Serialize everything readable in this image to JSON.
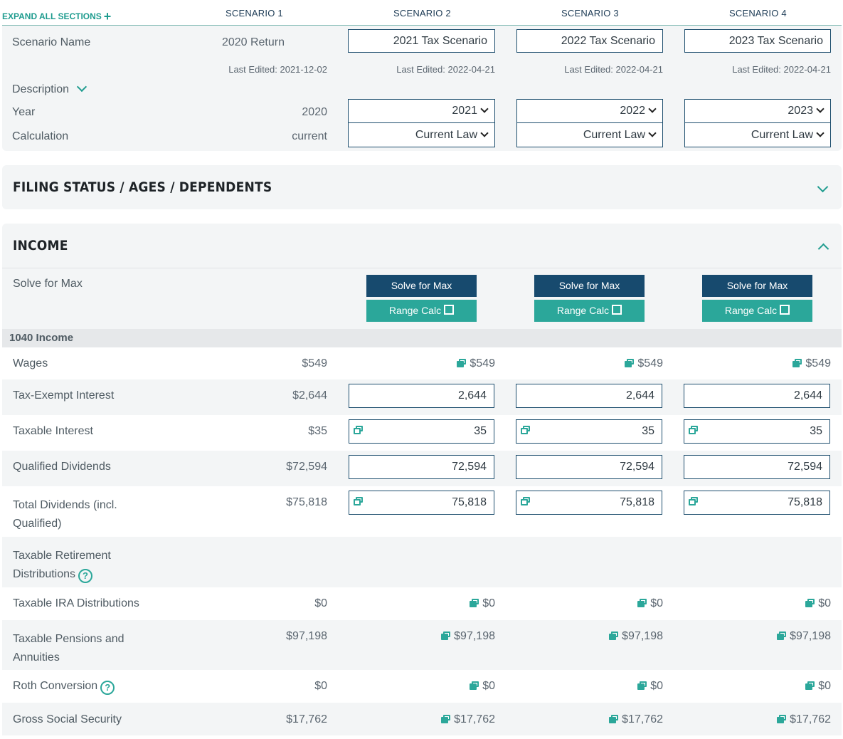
{
  "header": {
    "expand_all": "EXPAND ALL SECTIONS",
    "scenarios": [
      "SCENARIO 1",
      "SCENARIO 2",
      "SCENARIO 3",
      "SCENARIO 4"
    ]
  },
  "scenario_panel": {
    "name_label": "Scenario Name",
    "names": [
      "2020 Return",
      "2021 Tax Scenario",
      "2022 Tax Scenario",
      "2023 Tax Scenario"
    ],
    "edited": [
      "Last Edited: 2021-12-02",
      "Last Edited: 2022-04-21",
      "Last Edited: 2022-04-21",
      "Last Edited: 2022-04-21"
    ],
    "description_label": "Description",
    "year_label": "Year",
    "years": [
      "2020",
      "2021",
      "2022",
      "2023"
    ],
    "calc_label": "Calculation",
    "calcs": [
      "current",
      "Current Law",
      "Current Law",
      "Current Law"
    ]
  },
  "sections": {
    "filing": "FILING STATUS / AGES / DEPENDENTS",
    "income": "INCOME"
  },
  "income": {
    "solve_label": "Solve for Max",
    "solve_button": "Solve for Max",
    "range_button": "Range Calc",
    "subheader": "1040 Income",
    "rows": {
      "wages": {
        "label": "Wages",
        "s1": "$549",
        "s2": "$549",
        "s3": "$549",
        "s4": "$549"
      },
      "tax_exempt": {
        "label": "Tax-Exempt Interest",
        "s1": "$2,644",
        "s2": "2,644",
        "s3": "2,644",
        "s4": "2,644"
      },
      "taxable_interest": {
        "label": "Taxable Interest",
        "s1": "$35",
        "s2": "35",
        "s3": "35",
        "s4": "35"
      },
      "qualified_div": {
        "label": "Qualified Dividends",
        "s1": "$72,594",
        "s2": "72,594",
        "s3": "72,594",
        "s4": "72,594"
      },
      "total_div": {
        "label_1": "Total Dividends (incl.",
        "label_2": "Qualified)",
        "s1": "$75,818",
        "s2": "75,818",
        "s3": "75,818",
        "s4": "75,818"
      },
      "retirement": {
        "label_1": "Taxable Retirement",
        "label_2": "Distributions"
      },
      "ira": {
        "label": "Taxable IRA Distributions",
        "s1": "$0",
        "s2": "$0",
        "s3": "$0",
        "s4": "$0"
      },
      "pensions": {
        "label_1": "Taxable Pensions and",
        "label_2": "Annuities",
        "s1": "$97,198",
        "s2": "$97,198",
        "s3": "$97,198",
        "s4": "$97,198"
      },
      "roth": {
        "label": "Roth Conversion",
        "s1": "$0",
        "s2": "$0",
        "s3": "$0",
        "s4": "$0"
      },
      "social_security": {
        "label": "Gross Social Security",
        "s1": "$17,762",
        "s2": "$17,762",
        "s3": "$17,762",
        "s4": "$17,762"
      }
    }
  },
  "colors": {
    "teal": "#2ba79a",
    "navy": "#174a6e",
    "panel": "#f3f5f6"
  }
}
